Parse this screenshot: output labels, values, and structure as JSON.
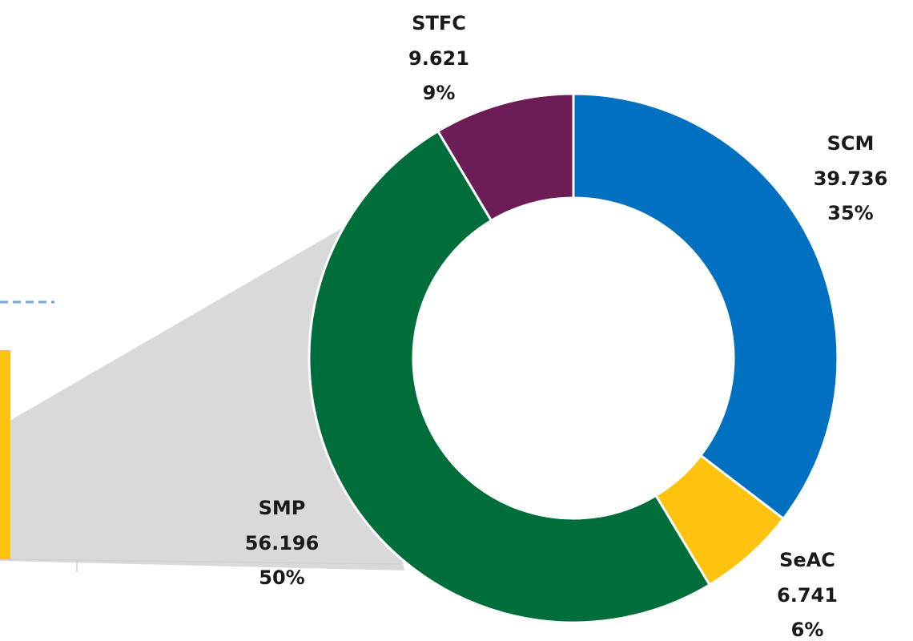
{
  "chart_data": {
    "type": "donut",
    "categories": [
      "SCM",
      "SeAC",
      "SMP",
      "STFC"
    ],
    "values": [
      39.736,
      6.741,
      56.196,
      9.621
    ],
    "percents": [
      35,
      6,
      50,
      9
    ],
    "percent_labels": [
      "35%",
      "6%",
      "50%",
      "9%"
    ],
    "colors": [
      "#0070c0",
      "#ffc20e",
      "#006e3a",
      "#6d1d55"
    ]
  }
}
